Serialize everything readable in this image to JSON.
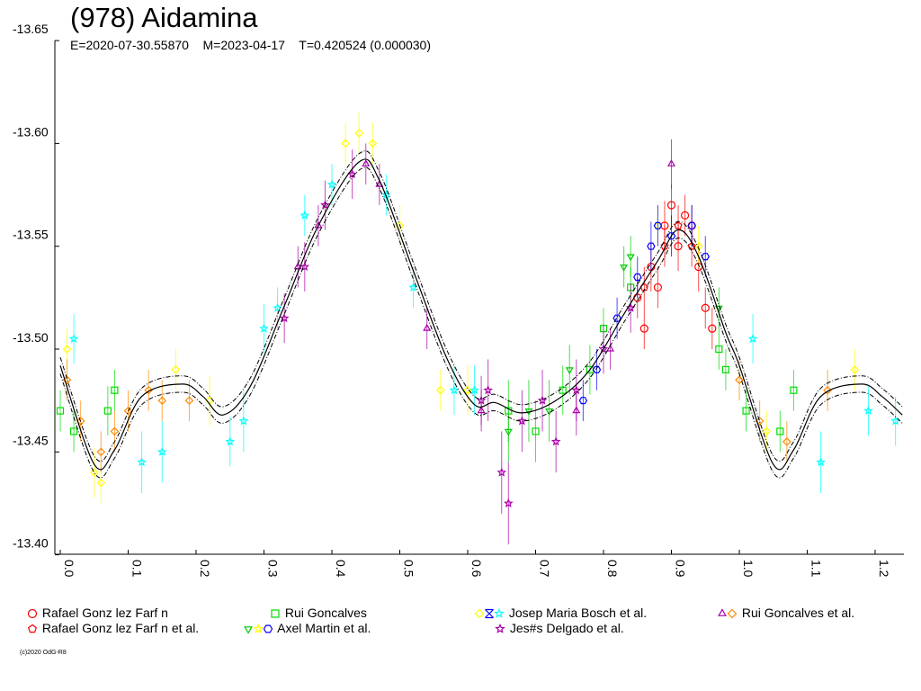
{
  "chart_data": {
    "type": "scatter",
    "title": "(978) Aidamina",
    "subtitle": {
      "epoch": "E=2020-07-30.55870",
      "mid": "M=2023-04-17",
      "period": "T=0.420524 (0.000030)"
    },
    "xlabel": "",
    "ylabel": "",
    "xlim": [
      -0.008,
      1.242
    ],
    "ylim": [
      -13.4,
      -13.65
    ],
    "y_inverted": true,
    "yticks": [
      "-13.65",
      "-13.60",
      "-13.55",
      "-13.50",
      "-13.45",
      "-13.40"
    ],
    "ytick_values": [
      -13.65,
      -13.6,
      -13.55,
      -13.5,
      -13.45,
      -13.4
    ],
    "xticks": [
      "0.0",
      "0.1",
      "0.2",
      "0.3",
      "0.4",
      "0.5",
      "0.6",
      "0.7",
      "0.8",
      "0.9",
      "1.0",
      "1.1",
      "1.2"
    ],
    "xtick_values": [
      0,
      0.1,
      0.2,
      0.3,
      0.4,
      0.5,
      0.6,
      0.7,
      0.8,
      0.9,
      1.0,
      1.1,
      1.2
    ],
    "fit_curve": {
      "phase": [
        0.0,
        0.05,
        0.08,
        0.12,
        0.18,
        0.21,
        0.24,
        0.28,
        0.33,
        0.38,
        0.44,
        0.47,
        0.52,
        0.57,
        0.61,
        0.64,
        0.68,
        0.73,
        0.78,
        0.83,
        0.88,
        0.91,
        0.94,
        0.98,
        1.0,
        1.05,
        1.08,
        1.12,
        1.18,
        1.21,
        1.24
      ],
      "mag": [
        -13.492,
        -13.444,
        -13.451,
        -13.477,
        -13.483,
        -13.477,
        -13.468,
        -13.482,
        -13.521,
        -13.56,
        -13.591,
        -13.582,
        -13.538,
        -13.495,
        -13.473,
        -13.474,
        -13.469,
        -13.475,
        -13.49,
        -13.517,
        -13.543,
        -13.558,
        -13.545,
        -13.508,
        -13.492,
        -13.444,
        -13.451,
        -13.477,
        -13.483,
        -13.477,
        -13.468
      ],
      "band": 0.004
    },
    "series": [
      {
        "name": "Rafael Gonz lez Farf n",
        "color": "#ff0000",
        "symbol": "circle",
        "points": [
          [
            0.85,
            -13.525,
            0.01
          ],
          [
            0.86,
            -13.51,
            0.01
          ],
          [
            0.87,
            -13.54,
            0.012
          ],
          [
            0.88,
            -13.53,
            0.01
          ],
          [
            0.89,
            -13.56,
            0.012
          ],
          [
            0.9,
            -13.57,
            0.01
          ],
          [
            0.91,
            -13.55,
            0.012
          ],
          [
            0.92,
            -13.565,
            0.01
          ],
          [
            0.93,
            -13.56,
            0.01
          ],
          [
            0.94,
            -13.54,
            0.012
          ],
          [
            0.95,
            -13.52,
            0.01
          ],
          [
            0.96,
            -13.51,
            0.01
          ]
        ]
      },
      {
        "name": "Rui Goncalves",
        "color": "#00dd00",
        "symbol": "square",
        "points": [
          [
            0.0,
            -13.47,
            0.01
          ],
          [
            0.02,
            -13.46,
            0.01
          ],
          [
            0.07,
            -13.47,
            0.012
          ],
          [
            0.08,
            -13.48,
            0.01
          ],
          [
            0.66,
            -13.47,
            0.015
          ],
          [
            0.7,
            -13.46,
            0.015
          ],
          [
            0.74,
            -13.48,
            0.012
          ],
          [
            0.78,
            -13.49,
            0.012
          ],
          [
            0.8,
            -13.51,
            0.01
          ],
          [
            0.84,
            -13.53,
            0.01
          ],
          [
            0.97,
            -13.5,
            0.01
          ],
          [
            0.98,
            -13.49,
            0.01
          ],
          [
            1.01,
            -13.47,
            0.01
          ],
          [
            1.06,
            -13.46,
            0.01
          ],
          [
            1.08,
            -13.48,
            0.01
          ]
        ]
      },
      {
        "name": "Josep Maria Bosch et al.",
        "color": "#ffff00",
        "symbol": "diamond",
        "alt_colors": [
          "#0000ff",
          "#00ffff"
        ],
        "points": [
          [
            0.01,
            -13.5,
            0.01
          ],
          [
            0.05,
            -13.44,
            0.012
          ],
          [
            0.06,
            -13.435,
            0.01
          ],
          [
            0.17,
            -13.49,
            0.01
          ],
          [
            0.22,
            -13.475,
            0.012
          ],
          [
            0.42,
            -13.6,
            0.01
          ],
          [
            0.44,
            -13.605,
            0.01
          ],
          [
            0.46,
            -13.6,
            0.01
          ],
          [
            0.5,
            -13.56,
            0.01
          ],
          [
            0.56,
            -13.48,
            0.01
          ],
          [
            0.6,
            -13.48,
            0.012
          ],
          [
            0.88,
            -13.56,
            0.01
          ],
          [
            0.94,
            -13.55,
            0.01
          ],
          [
            1.04,
            -13.46,
            0.01
          ],
          [
            1.17,
            -13.49,
            0.01
          ]
        ]
      },
      {
        "name": "Josep Maria Bosch et al. (cyan)",
        "color": "#00ffff",
        "symbol": "star",
        "points": [
          [
            0.02,
            -13.505,
            0.012
          ],
          [
            0.12,
            -13.445,
            0.015
          ],
          [
            0.15,
            -13.45,
            0.015
          ],
          [
            0.25,
            -13.455,
            0.012
          ],
          [
            0.27,
            -13.465,
            0.015
          ],
          [
            0.3,
            -13.51,
            0.012
          ],
          [
            0.32,
            -13.52,
            0.01
          ],
          [
            0.36,
            -13.565,
            0.01
          ],
          [
            0.4,
            -13.58,
            0.01
          ],
          [
            0.48,
            -13.575,
            0.01
          ],
          [
            0.52,
            -13.53,
            0.01
          ],
          [
            0.58,
            -13.48,
            0.012
          ],
          [
            0.61,
            -13.48,
            0.012
          ],
          [
            1.02,
            -13.505,
            0.012
          ],
          [
            1.12,
            -13.445,
            0.015
          ],
          [
            1.19,
            -13.47,
            0.012
          ],
          [
            1.23,
            -13.465,
            0.012
          ]
        ]
      },
      {
        "name": "Rui Goncalves et al.",
        "color": "#aa00aa",
        "symbol": "triangle",
        "alt_colors": [
          "#ff8800"
        ],
        "points": [
          [
            0.35,
            -13.54,
            0.01
          ],
          [
            0.38,
            -13.56,
            0.01
          ],
          [
            0.45,
            -13.59,
            0.01
          ],
          [
            0.47,
            -13.58,
            0.01
          ],
          [
            0.54,
            -13.51,
            0.01
          ],
          [
            0.62,
            -13.47,
            0.01
          ],
          [
            0.76,
            -13.47,
            0.012
          ],
          [
            0.81,
            -13.5,
            0.01
          ],
          [
            0.9,
            -13.59,
            0.012
          ]
        ]
      },
      {
        "name": "Rui Goncalves et al. (orange)",
        "color": "#ff8800",
        "symbol": "diamond",
        "points": [
          [
            0.01,
            -13.485,
            0.01
          ],
          [
            0.03,
            -13.465,
            0.01
          ],
          [
            0.06,
            -13.45,
            0.01
          ],
          [
            0.08,
            -13.46,
            0.01
          ],
          [
            0.1,
            -13.47,
            0.01
          ],
          [
            0.13,
            -13.48,
            0.01
          ],
          [
            0.15,
            -13.475,
            0.01
          ],
          [
            0.19,
            -13.475,
            0.01
          ],
          [
            1.0,
            -13.485,
            0.01
          ],
          [
            1.03,
            -13.465,
            0.01
          ],
          [
            1.07,
            -13.455,
            0.01
          ],
          [
            1.13,
            -13.48,
            0.01
          ]
        ]
      },
      {
        "name": "Rafael Gonz lez Farf n et al.",
        "color": "#ff0000",
        "symbol": "pentagon",
        "points": [
          [
            0.86,
            -13.53,
            0.01
          ],
          [
            0.89,
            -13.55,
            0.01
          ],
          [
            0.91,
            -13.56,
            0.01
          ],
          [
            0.93,
            -13.55,
            0.01
          ]
        ]
      },
      {
        "name": "Axel Martin et al.",
        "color": "#0000ff",
        "symbol": "hexagon",
        "alt_colors": [
          "#00cc00",
          "#ffff00"
        ],
        "points": [
          [
            0.79,
            -13.49,
            0.01
          ],
          [
            0.82,
            -13.515,
            0.01
          ],
          [
            0.85,
            -13.535,
            0.01
          ],
          [
            0.87,
            -13.55,
            0.012
          ],
          [
            0.88,
            -13.56,
            0.01
          ],
          [
            0.9,
            -13.555,
            0.01
          ],
          [
            0.93,
            -13.56,
            0.01
          ],
          [
            0.95,
            -13.545,
            0.01
          ],
          [
            0.77,
            -13.475,
            0.01
          ]
        ]
      },
      {
        "name": "Axel Martin et al. (green)",
        "color": "#00cc00",
        "symbol": "downtriangle",
        "points": [
          [
            0.66,
            -13.46,
            0.015
          ],
          [
            0.69,
            -13.47,
            0.015
          ],
          [
            0.72,
            -13.47,
            0.015
          ],
          [
            0.75,
            -13.49,
            0.012
          ],
          [
            0.83,
            -13.54,
            0.01
          ],
          [
            0.84,
            -13.545,
            0.01
          ],
          [
            0.97,
            -13.52,
            0.01
          ]
        ]
      },
      {
        "name": "Jes#s Delgado et al.",
        "color": "#aa00aa",
        "symbol": "star",
        "points": [
          [
            0.33,
            -13.515,
            0.012
          ],
          [
            0.36,
            -13.54,
            0.012
          ],
          [
            0.39,
            -13.57,
            0.012
          ],
          [
            0.43,
            -13.585,
            0.012
          ],
          [
            0.62,
            -13.475,
            0.012
          ],
          [
            0.63,
            -13.48,
            0.015
          ],
          [
            0.65,
            -13.44,
            0.02
          ],
          [
            0.66,
            -13.425,
            0.02
          ],
          [
            0.68,
            -13.465,
            0.015
          ],
          [
            0.71,
            -13.475,
            0.015
          ],
          [
            0.73,
            -13.455,
            0.015
          ],
          [
            0.76,
            -13.48,
            0.015
          ],
          [
            0.8,
            -13.5,
            0.012
          ],
          [
            0.84,
            -13.52,
            0.012
          ]
        ]
      }
    ],
    "legend": {
      "placement": "bottom",
      "entries": [
        {
          "label": "Rafael Gonz lez Farf n",
          "symbols": [
            [
              "circle",
              "#ff0000"
            ]
          ]
        },
        {
          "label": "Rui Goncalves",
          "symbols": [
            [
              "square",
              "#00dd00"
            ]
          ]
        },
        {
          "label": "Josep Maria Bosch et al.",
          "symbols": [
            [
              "diamond",
              "#ffff00"
            ],
            [
              "cross",
              "#0000ff"
            ],
            [
              "star",
              "#00ffff"
            ]
          ]
        },
        {
          "label": "Rui Goncalves et al.",
          "symbols": [
            [
              "triangle",
              "#aa00aa"
            ],
            [
              "diamond",
              "#ff8800"
            ]
          ]
        },
        {
          "label": "Rafael Gonz lez Farf n et al.",
          "symbols": [
            [
              "pentagon",
              "#ff0000"
            ]
          ]
        },
        {
          "label": "Axel Martin et al.",
          "symbols": [
            [
              "downtriangle",
              "#00cc00"
            ],
            [
              "star",
              "#ffff00"
            ],
            [
              "hexagon",
              "#0000ff"
            ]
          ]
        },
        {
          "label": "Jes#s Delgado et al.",
          "symbols": [
            [
              "star",
              "#aa00aa"
            ]
          ]
        }
      ]
    }
  },
  "footer": {
    "copyright": "(c)2020 OdG-R8"
  }
}
